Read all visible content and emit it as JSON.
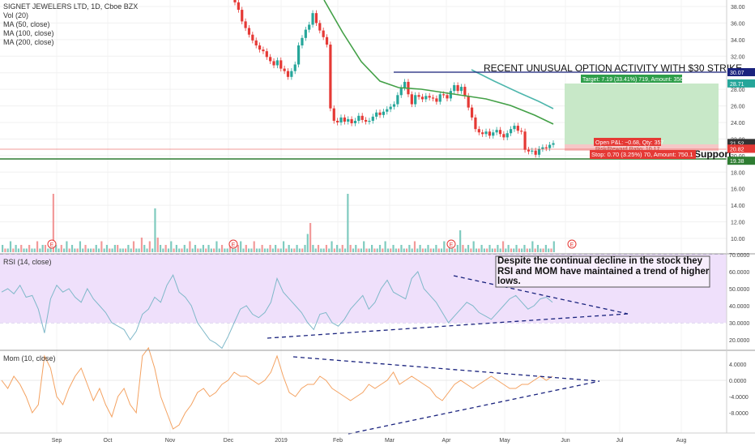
{
  "chart_data": [
    {
      "type": "candlestick",
      "panel": "price",
      "title": "SIGNET JEWELERS LTD, 1D, Cboe BZX",
      "legend": [
        "Vol (20)",
        "MA (50, close)",
        "MA (100, close)",
        "MA (200, close)"
      ],
      "y_ticks": [
        "38.00",
        "36.00",
        "34.00",
        "32.00",
        "30.00",
        "28.00",
        "26.00",
        "24.00",
        "22.00",
        "20.00",
        "18.00",
        "16.00",
        "14.00",
        "12.00",
        "10.00"
      ],
      "ylim": [
        9,
        39
      ],
      "x_ticks": [
        "Sep",
        "Oct",
        "Nov",
        "Dec",
        "2019",
        "Feb",
        "Mar",
        "Apr",
        "May",
        "Jun",
        "Jul",
        "Aug"
      ],
      "price_labels": [
        {
          "text": "30.07",
          "color": "#1a237e"
        },
        {
          "text": "28.71",
          "color": "#26a69a"
        },
        {
          "text": "21.52",
          "color": "#333333"
        },
        {
          "text": "20.84",
          "color": "#e53935"
        },
        {
          "text": "20.82",
          "color": "#e53935"
        },
        {
          "text": "19.38",
          "color": "#2e7d32"
        }
      ],
      "annotations": {
        "option_activity": "RECENT UNUSUAL OPTION ACTIVITY WITH $30 STRIKE",
        "target": "Target: 7.19 (33.41%) 719, Amount: 3566.83",
        "open_pl": "Open P&L: −0.68, Qty: 357",
        "risk_reward": "Risk/Reward Ratio: 10.17",
        "stop": "Stop: 0.70 (3.25%) 70, Amount: 750.1",
        "support": "Support",
        "earnings_marker": "E"
      },
      "closes": [
        38.5,
        37.6,
        36.2,
        35.4,
        34.6,
        33.9,
        33.3,
        32.8,
        32.6,
        31.9,
        31.4,
        30.9,
        31.5,
        30.5,
        30.2,
        29.5,
        30.2,
        31.0,
        33.3,
        34.2,
        35.2,
        35.8,
        37.2,
        36.0,
        35.1,
        34.3,
        33.4,
        25.7,
        24.2,
        24.0,
        24.6,
        24.1,
        24.4,
        23.9,
        24.2,
        24.8,
        24.3,
        24.1,
        24.2,
        24.7,
        25.2,
        24.9,
        25.3,
        25.6,
        25.9,
        26.2,
        27.3,
        28.2,
        28.9,
        27.4,
        26.2,
        27.3,
        27.1,
        26.8,
        27.2,
        27.0,
        26.9,
        26.5,
        27.4,
        27.3,
        26.9,
        27.8,
        28.5,
        27.8,
        28.3,
        27.2,
        25.8,
        24.6,
        23.2,
        22.8,
        22.6,
        22.9,
        22.4,
        22.8,
        23.1,
        22.6,
        22.2,
        22.7,
        23.2,
        23.6,
        23.0,
        22.9,
        20.7,
        20.5,
        20.6,
        20.1,
        20.8,
        21.0,
        20.9,
        21.3,
        21.5
      ],
      "ma_green": [
        [
          400,
          0
        ],
        [
          423,
          40
        ],
        [
          446,
          76
        ],
        [
          469,
          100
        ],
        [
          492,
          108
        ],
        [
          520,
          110
        ],
        [
          560,
          116
        ],
        [
          600,
          122
        ],
        [
          630,
          130
        ],
        [
          660,
          142
        ],
        [
          683,
          153
        ]
      ],
      "ma_teal": [
        [
          582,
          86
        ],
        [
          610,
          100
        ],
        [
          640,
          114
        ],
        [
          665,
          125
        ],
        [
          683,
          134
        ]
      ],
      "volume": [
        2,
        1,
        1,
        3,
        1,
        2,
        1,
        2,
        1,
        1,
        2,
        1,
        1,
        3,
        1,
        2,
        2,
        1,
        3,
        16,
        2,
        1,
        2,
        1,
        3,
        1,
        2,
        1,
        1,
        3,
        1,
        2,
        1,
        1,
        1,
        2,
        1,
        3,
        1,
        2,
        1,
        1,
        2,
        2,
        1,
        1,
        1,
        2,
        1,
        3,
        1,
        1,
        4,
        2,
        1,
        3,
        1,
        12,
        4,
        2,
        1,
        2,
        1,
        3,
        1,
        2,
        1,
        1,
        2,
        1,
        3,
        1,
        2,
        1,
        1,
        2,
        1,
        2,
        1,
        1,
        3,
        1,
        2,
        1,
        1,
        2,
        1,
        1,
        2,
        3,
        1,
        2,
        1,
        1,
        3,
        1,
        1,
        2,
        1,
        1,
        2,
        1,
        2,
        1,
        1,
        3,
        1,
        2,
        1,
        1,
        2,
        1,
        1,
        2,
        5,
        8,
        2,
        1,
        2,
        1,
        1,
        2,
        1,
        3,
        1,
        2,
        1,
        2,
        1,
        16,
        2,
        1,
        2,
        1,
        1,
        3,
        1,
        1,
        2,
        1,
        1,
        2,
        1,
        3,
        1,
        1,
        2,
        1,
        1,
        2,
        1,
        1,
        2,
        1,
        3,
        1,
        2,
        1,
        1,
        2,
        1,
        1,
        2,
        1,
        1,
        3,
        1,
        2,
        1,
        1,
        2,
        6,
        2,
        1,
        2,
        1,
        3,
        1,
        1,
        2,
        1,
        1,
        2,
        1,
        1,
        2,
        1,
        3,
        1,
        2,
        1,
        1,
        2,
        1,
        1,
        2,
        1,
        1,
        3,
        1,
        2,
        1,
        1,
        2,
        1,
        1,
        3
      ]
    },
    {
      "type": "line",
      "panel": "rsi",
      "title": "RSI (14, close)",
      "y_ticks": [
        "70.0000",
        "60.0000",
        "50.0000",
        "40.0000",
        "30.0000",
        "20.0000"
      ],
      "ylim": [
        13,
        70
      ],
      "band": [
        30,
        70
      ],
      "annotation": "Despite the continual decline in the stock they RSI and MOM have maintained a trend of higher lows.",
      "values": [
        48,
        50,
        47,
        52,
        45,
        46,
        38,
        24,
        44,
        52,
        48,
        50,
        45,
        42,
        50,
        44,
        40,
        36,
        30,
        28,
        26,
        20,
        25,
        35,
        38,
        45,
        42,
        52,
        58,
        48,
        45,
        40,
        30,
        25,
        20,
        18,
        15,
        22,
        30,
        38,
        40,
        35,
        33,
        36,
        42,
        56,
        48,
        44,
        40,
        36,
        30,
        26,
        35,
        36,
        30,
        28,
        32,
        38,
        42,
        46,
        38,
        42,
        50,
        55,
        48,
        46,
        44,
        56,
        60,
        50,
        46,
        42,
        36,
        30,
        34,
        38,
        42,
        40,
        36,
        34,
        32,
        36,
        40,
        44,
        46,
        42,
        38,
        40,
        44,
        45,
        42
      ]
    },
    {
      "type": "line",
      "panel": "mom",
      "title": "Mom (10, close)",
      "y_ticks": [
        "4.0000",
        "0.0000",
        "-4.0000",
        "-8.0000"
      ],
      "ylim": [
        -11,
        6
      ],
      "values": [
        0,
        -2,
        1,
        -1,
        -4,
        -8,
        -6,
        6,
        3,
        -4,
        -6,
        -2,
        1,
        3,
        -1,
        -5,
        -2,
        -6,
        -9,
        -4,
        -2,
        -6,
        -8,
        6,
        8,
        3,
        -4,
        -8,
        -12,
        -11,
        -8,
        -6,
        -3,
        -2,
        -4,
        -3,
        -1,
        0,
        2,
        1,
        1,
        0,
        -1,
        0,
        2,
        6,
        1,
        -3,
        -4,
        -2,
        -1,
        -1,
        1,
        0,
        -2,
        -3,
        -4,
        -5,
        -4,
        -3,
        -1,
        -2,
        -1,
        0,
        2,
        -1,
        0,
        1,
        0,
        -1,
        -2,
        -4,
        -5,
        -3,
        -1,
        0,
        -1,
        -2,
        -1,
        0,
        1,
        0,
        -1,
        -2,
        -2,
        -1,
        -1,
        0,
        1,
        0,
        1
      ]
    }
  ]
}
